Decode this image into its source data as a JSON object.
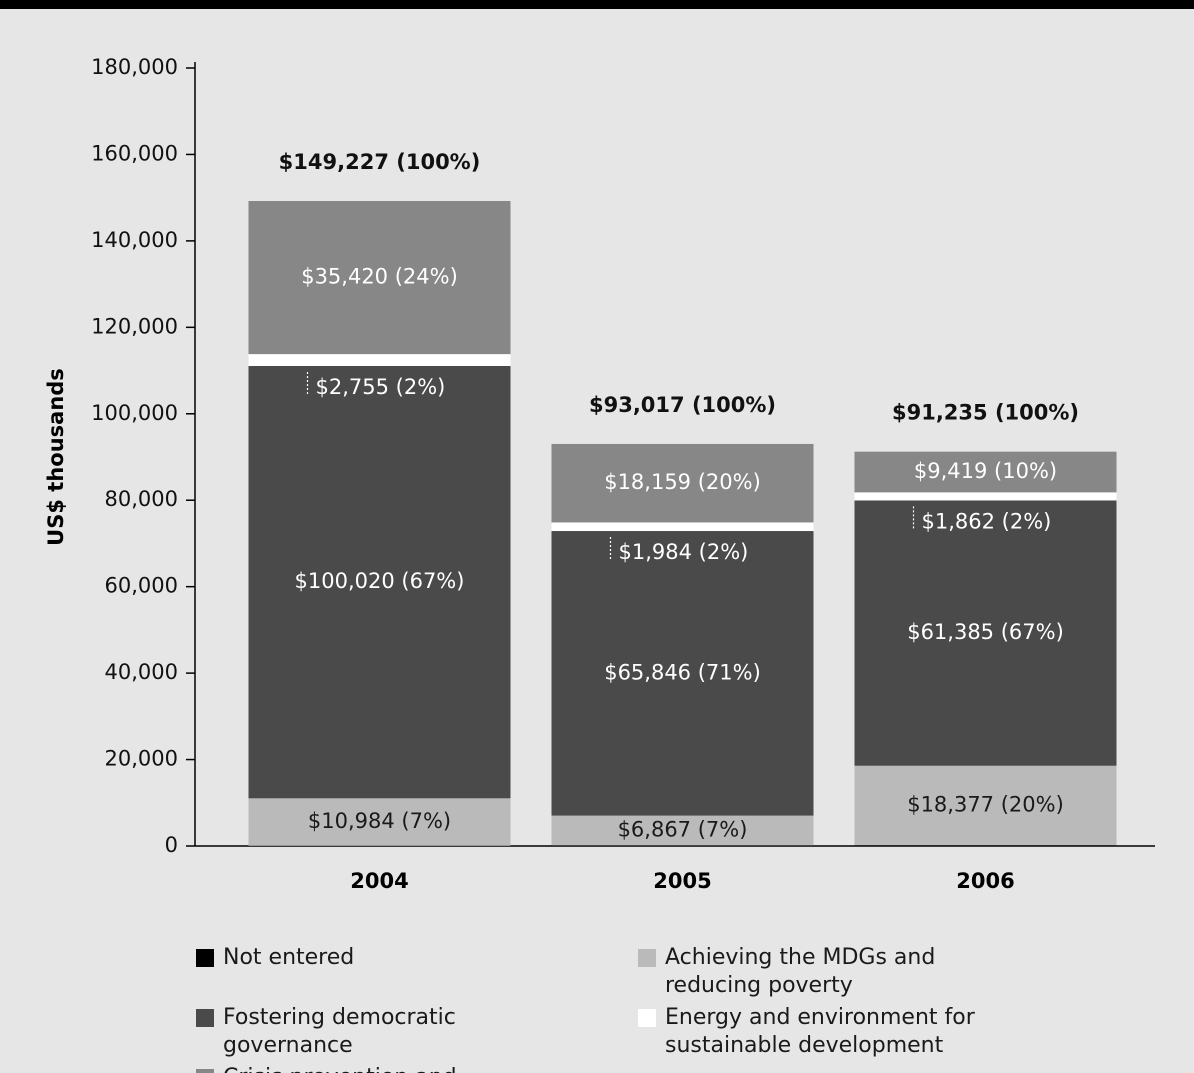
{
  "chart_data": {
    "type": "stacked_bar",
    "y_label": "US$ thousands",
    "categories": [
      "2004",
      "2005",
      "2006"
    ],
    "series": [
      {
        "name": "Not entered",
        "color": "#000000",
        "values": [
          48,
          161,
          192
        ]
      },
      {
        "name": "Achieving the MDGs and reducing poverty",
        "color": "#bababa",
        "values": [
          10984,
          6867,
          18377
        ],
        "value_labels": [
          "$10,984 (7%)",
          "$6,867 (7%)",
          "$18,377 (20%)"
        ]
      },
      {
        "name": "Fostering democratic governance",
        "color": "#4a4a4a",
        "values": [
          100020,
          65846,
          61385
        ],
        "value_labels": [
          "$100,020 (67%)",
          "$65,846 (71%)",
          "$61,385 (67%)"
        ]
      },
      {
        "name": "Energy and environment for sustainable development",
        "color": "#ffffff",
        "values": [
          2755,
          1984,
          1862
        ],
        "value_labels": [
          "$2,755 (2%)",
          "$1,984 (2%)",
          "$1,862 (2%)"
        ]
      },
      {
        "name": "Crisis prevention and recovery",
        "color": "#878787",
        "values": [
          35420,
          18159,
          9419
        ],
        "value_labels": [
          "$35,420 (24%)",
          "$18,159 (20%)",
          "$9,419 (10%)"
        ]
      }
    ],
    "totals": [
      149227,
      93017,
      91235
    ],
    "total_labels": [
      "$149,227 (100%)",
      "$93,017 (100%)",
      "$91,235 (100%)"
    ],
    "ylim": [
      0,
      180000
    ],
    "yticks": [
      0,
      {
        "value": 20000,
        "label": "20,000"
      },
      {
        "value": 40000,
        "label": "40,000"
      },
      {
        "value": 60000,
        "label": "60,000"
      },
      {
        "value": 80000,
        "label": "80,000"
      },
      {
        "value": 100000,
        "label": "100,000"
      },
      {
        "value": 120000,
        "label": "120,000"
      },
      {
        "value": 140000,
        "label": "140,000"
      },
      {
        "value": 160000,
        "label": "160,000"
      },
      {
        "value": 180000,
        "label": "180,000"
      }
    ],
    "grid": false
  }
}
